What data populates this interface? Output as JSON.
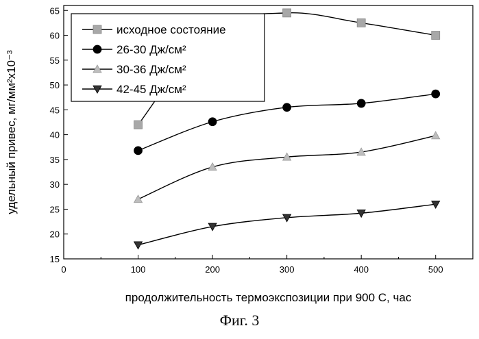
{
  "caption": "Фиг. 3",
  "chart_data": {
    "type": "line",
    "xlabel": "продолжительность термоэкспозиции при 900 С, час",
    "ylabel": "удельный привес, мг/мм²x10⁻³",
    "xlim": [
      0,
      550
    ],
    "ylim": [
      15,
      66
    ],
    "x_ticks": [
      0,
      100,
      200,
      300,
      400,
      500
    ],
    "y_ticks": [
      15,
      20,
      25,
      30,
      35,
      40,
      45,
      50,
      55,
      60,
      65
    ],
    "legend_position": "top-left",
    "grid": false,
    "x": [
      100,
      200,
      300,
      400,
      500
    ],
    "series": [
      {
        "name": "исходное состояние",
        "marker": "square",
        "color": "#a8a8a8",
        "values": [
          42,
          61,
          64.5,
          62.5,
          60
        ]
      },
      {
        "name": "26-30 Дж/см²",
        "marker": "circle",
        "color": "#000000",
        "values": [
          36.8,
          42.6,
          45.5,
          46.3,
          48.2
        ]
      },
      {
        "name": "30-36 Дж/см²",
        "marker": "triangle-up",
        "color": "#bdbdbd",
        "values": [
          27,
          33.5,
          35.5,
          36.5,
          39.8
        ]
      },
      {
        "name": "42-45 Дж/см²",
        "marker": "triangle-down",
        "color": "#333333",
        "values": [
          17.8,
          21.5,
          23.3,
          24.2,
          26
        ]
      }
    ]
  }
}
